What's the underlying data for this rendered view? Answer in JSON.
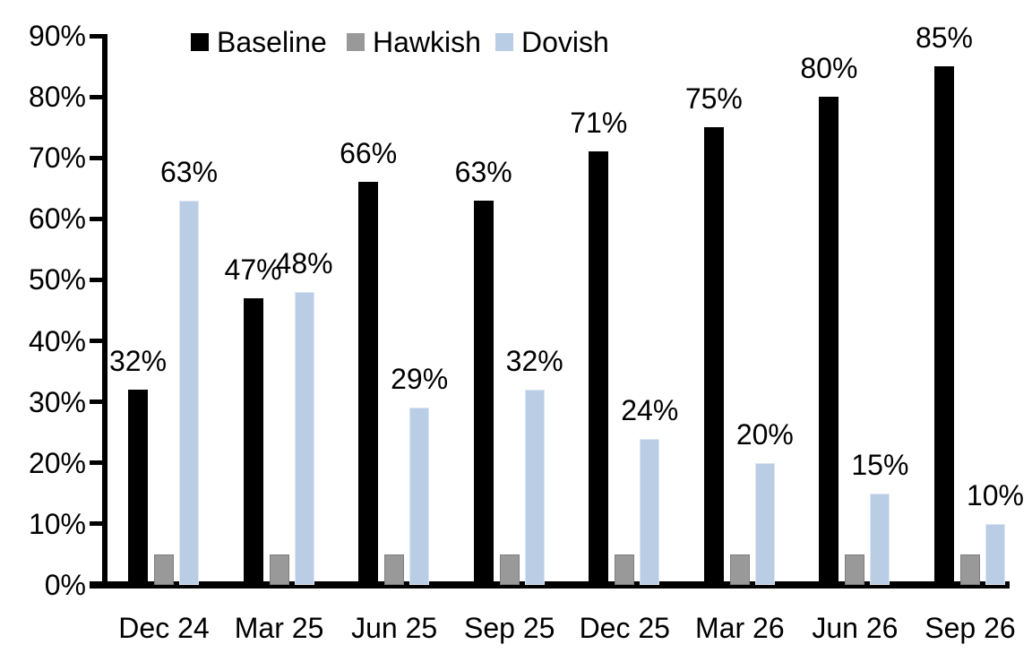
{
  "chart_data": {
    "type": "bar",
    "categories": [
      "Dec 24",
      "Mar 25",
      "Jun 25",
      "Sep 25",
      "Dec 25",
      "Mar 26",
      "Jun 26",
      "Sep 26"
    ],
    "series": [
      {
        "name": "Baseline",
        "color": "#000000",
        "border_color": "#000000",
        "values": [
          32,
          47,
          66,
          63,
          71,
          75,
          80,
          85
        ],
        "data_labels": [
          "32%",
          "47%",
          "66%",
          "63%",
          "71%",
          "75%",
          "80%",
          "85%"
        ]
      },
      {
        "name": "Hawkish",
        "color": "#999999",
        "border_color": "#7f7f7f",
        "values": [
          5,
          5,
          5,
          5,
          5,
          5,
          5,
          5
        ],
        "data_labels": []
      },
      {
        "name": "Dovish",
        "color": "#b9cde5",
        "border_color": "#dce6f1",
        "values": [
          63,
          48,
          29,
          32,
          24,
          20,
          15,
          10
        ],
        "data_labels": [
          "63%",
          "48%",
          "29%",
          "32%",
          "24%",
          "20%",
          "15%",
          "10%"
        ]
      }
    ],
    "y_axis": {
      "min": 0,
      "max": 90,
      "step": 10,
      "tick_labels": [
        "0%",
        "10%",
        "20%",
        "30%",
        "40%",
        "50%",
        "60%",
        "70%",
        "80%",
        "90%"
      ]
    },
    "x_axis": {
      "tick_labels": [
        "Dec 24",
        "Mar 25",
        "Jun 25",
        "Sep 25",
        "Dec 25",
        "Mar 26",
        "Jun 26",
        "Sep 26"
      ]
    },
    "legend": {
      "position": "top",
      "entries": [
        "Baseline",
        "Hawkish",
        "Dovish"
      ]
    },
    "grid": false,
    "axis_color": "#000000",
    "background": "#ffffff"
  }
}
